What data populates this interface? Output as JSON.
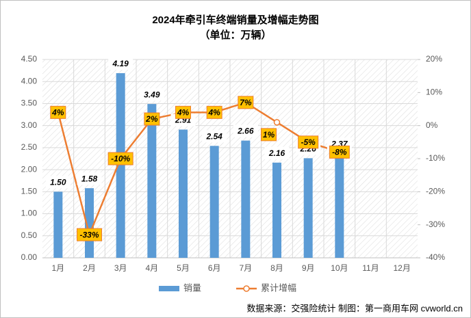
{
  "chart_data": {
    "type": "bar",
    "title": "2024年牵引车终端销量及增幅走势图",
    "subtitle": "（单位：万辆）",
    "categories": [
      "1月",
      "2月",
      "3月",
      "4月",
      "5月",
      "6月",
      "7月",
      "8月",
      "9月",
      "10月",
      "11月",
      "12月"
    ],
    "series": [
      {
        "name": "销量",
        "type": "bar",
        "color": "#5b9bd5",
        "values": [
          1.5,
          1.58,
          4.19,
          3.49,
          2.91,
          2.54,
          2.66,
          2.16,
          2.26,
          2.37,
          null,
          null
        ],
        "value_labels": [
          "1.50",
          "1.58",
          "4.19",
          "3.49",
          "2.91",
          "2.54",
          "2.66",
          "2.16",
          "2.26",
          "2.37",
          null,
          null
        ]
      },
      {
        "name": "累计增幅",
        "type": "line",
        "axis": "y2",
        "color": "#ed7d31",
        "values": [
          4,
          -33,
          -10,
          2,
          4,
          4,
          7,
          1,
          -5,
          -8,
          null,
          null
        ],
        "value_labels": [
          "4%",
          "-33%",
          "-10%",
          "2%",
          "4%",
          "4%",
          "7%",
          "1%",
          "-5%",
          "-8%",
          null,
          null
        ]
      }
    ],
    "ylim": [
      0,
      4.5
    ],
    "yticks": [
      {
        "value": 0,
        "label": "0.00"
      },
      {
        "value": 0.5,
        "label": "0.50"
      },
      {
        "value": 1,
        "label": "1.00"
      },
      {
        "value": 1.5,
        "label": "1.50"
      },
      {
        "value": 2,
        "label": "2.00"
      },
      {
        "value": 2.5,
        "label": "2.50"
      },
      {
        "value": 3,
        "label": "3.00"
      },
      {
        "value": 3.5,
        "label": "3.50"
      },
      {
        "value": 4,
        "label": "4.00"
      },
      {
        "value": 4.5,
        "label": "4.50"
      }
    ],
    "y2lim": [
      -40,
      20
    ],
    "y2ticks": [
      {
        "value": -40,
        "label": "-40%"
      },
      {
        "value": -30,
        "label": "-30%"
      },
      {
        "value": -20,
        "label": "-20%"
      },
      {
        "value": -10,
        "label": "-10%"
      },
      {
        "value": 0,
        "label": "0%"
      },
      {
        "value": 10,
        "label": "10%"
      },
      {
        "value": 20,
        "label": "20%"
      }
    ],
    "grid": true,
    "legend": "bottom",
    "source": "数据来源：交强险统计   制图：第一商用车网 cvworld.cn"
  }
}
